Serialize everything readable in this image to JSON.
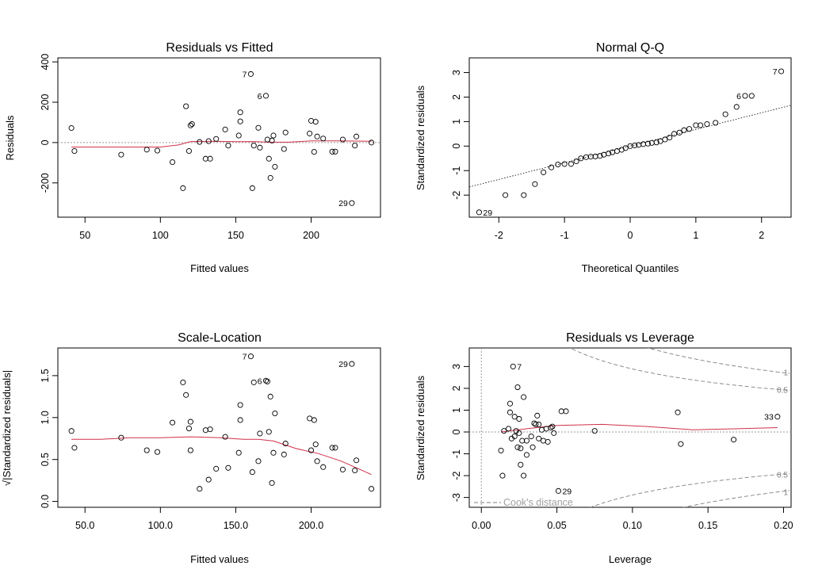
{
  "chart_data": [
    {
      "type": "scatter",
      "title": "Residuals vs Fitted",
      "xlabel": "Fitted values",
      "ylabel": "Residuals",
      "xlim": [
        32,
        246
      ],
      "ylim": [
        -370,
        420
      ],
      "xticks": [
        50,
        100,
        150,
        200
      ],
      "yticks": [
        -200,
        0,
        200,
        400
      ],
      "reference_line_y": 0,
      "points": [
        [
          41,
          72
        ],
        [
          43,
          -42
        ],
        [
          74,
          -60
        ],
        [
          91,
          -35
        ],
        [
          98,
          -40
        ],
        [
          108,
          -97
        ],
        [
          115,
          -226
        ],
        [
          117,
          180
        ],
        [
          119,
          -42
        ],
        [
          120,
          85
        ],
        [
          121,
          92
        ],
        [
          126,
          3
        ],
        [
          130,
          -80
        ],
        [
          132,
          7
        ],
        [
          133,
          -80
        ],
        [
          137,
          18
        ],
        [
          143,
          65
        ],
        [
          145,
          -15
        ],
        [
          152,
          35
        ],
        [
          153,
          105
        ],
        [
          153,
          150
        ],
        [
          160,
          340
        ],
        [
          161,
          -226
        ],
        [
          162,
          -15
        ],
        [
          165,
          73
        ],
        [
          166,
          -25
        ],
        [
          170,
          232
        ],
        [
          171,
          15
        ],
        [
          172,
          -80
        ],
        [
          173,
          -175
        ],
        [
          174,
          10
        ],
        [
          175,
          35
        ],
        [
          176,
          -120
        ],
        [
          182,
          -32
        ],
        [
          183,
          50
        ],
        [
          199,
          45
        ],
        [
          200,
          108
        ],
        [
          202,
          -46
        ],
        [
          203,
          103
        ],
        [
          204,
          30
        ],
        [
          208,
          20
        ],
        [
          214,
          -45
        ],
        [
          216,
          -45
        ],
        [
          221,
          15
        ],
        [
          227,
          -300
        ],
        [
          229,
          -15
        ],
        [
          230,
          30
        ],
        [
          240,
          0
        ]
      ],
      "smooth": [
        [
          41,
          -22
        ],
        [
          70,
          -22
        ],
        [
          100,
          -22
        ],
        [
          112,
          -12
        ],
        [
          120,
          5
        ],
        [
          135,
          6
        ],
        [
          150,
          4
        ],
        [
          162,
          5
        ],
        [
          172,
          2
        ],
        [
          185,
          2
        ],
        [
          200,
          8
        ],
        [
          220,
          8
        ],
        [
          240,
          6
        ]
      ],
      "labels": [
        {
          "text": "7",
          "x": 160,
          "y": 340
        },
        {
          "text": "6",
          "x": 170,
          "y": 232
        },
        {
          "text": "29",
          "x": 227,
          "y": -300
        }
      ]
    },
    {
      "type": "scatter",
      "title": "Normal Q-Q",
      "xlabel": "Theoretical Quantiles",
      "ylabel": "Standardized residuals",
      "xlim": [
        -2.45,
        2.45
      ],
      "ylim": [
        -2.9,
        3.6
      ],
      "xticks": [
        -2,
        -1,
        0,
        1,
        2
      ],
      "yticks": [
        -2,
        -1,
        0,
        1,
        2,
        3
      ],
      "qq_line": {
        "slope": 0.68,
        "intercept": 0.0
      },
      "points": [
        [
          -2.3,
          -2.7
        ],
        [
          -1.9,
          -2.0
        ],
        [
          -1.62,
          -2.0
        ],
        [
          -1.45,
          -1.55
        ],
        [
          -1.32,
          -1.07
        ],
        [
          -1.2,
          -0.87
        ],
        [
          -1.1,
          -0.75
        ],
        [
          -1.0,
          -0.73
        ],
        [
          -0.9,
          -0.73
        ],
        [
          -0.82,
          -0.62
        ],
        [
          -0.75,
          -0.5
        ],
        [
          -0.67,
          -0.45
        ],
        [
          -0.6,
          -0.43
        ],
        [
          -0.53,
          -0.42
        ],
        [
          -0.46,
          -0.4
        ],
        [
          -0.4,
          -0.35
        ],
        [
          -0.33,
          -0.3
        ],
        [
          -0.27,
          -0.25
        ],
        [
          -0.2,
          -0.2
        ],
        [
          -0.13,
          -0.15
        ],
        [
          -0.07,
          -0.08
        ],
        [
          0.0,
          0.0
        ],
        [
          0.07,
          0.03
        ],
        [
          0.13,
          0.05
        ],
        [
          0.2,
          0.08
        ],
        [
          0.27,
          0.1
        ],
        [
          0.33,
          0.13
        ],
        [
          0.4,
          0.15
        ],
        [
          0.46,
          0.2
        ],
        [
          0.53,
          0.27
        ],
        [
          0.6,
          0.35
        ],
        [
          0.67,
          0.5
        ],
        [
          0.75,
          0.55
        ],
        [
          0.82,
          0.65
        ],
        [
          0.9,
          0.7
        ],
        [
          1.0,
          0.85
        ],
        [
          1.07,
          0.85
        ],
        [
          1.17,
          0.9
        ],
        [
          1.3,
          0.95
        ],
        [
          1.45,
          1.3
        ],
        [
          1.62,
          1.6
        ],
        [
          1.75,
          2.05
        ],
        [
          1.85,
          2.05
        ],
        [
          2.3,
          3.05
        ]
      ],
      "labels": [
        {
          "text": "7",
          "x": 2.3,
          "y": 3.05
        },
        {
          "text": "6",
          "x": 1.75,
          "y": 2.05
        },
        {
          "text": "29",
          "x": -2.3,
          "y": -2.7
        }
      ]
    },
    {
      "type": "scatter",
      "title": "Scale-Location",
      "xlabel": "Fitted values",
      "ylabel": "√|Standardized residuals|",
      "xlim": [
        32,
        246
      ],
      "ylim": [
        -0.07,
        1.83
      ],
      "xticks": [
        50,
        100,
        150,
        200
      ],
      "yticks": [
        0.0,
        0.5,
        1.0,
        1.5
      ],
      "points": [
        [
          41,
          0.84
        ],
        [
          43,
          0.64
        ],
        [
          74,
          0.76
        ],
        [
          91,
          0.61
        ],
        [
          98,
          0.59
        ],
        [
          108,
          0.94
        ],
        [
          115,
          1.42
        ],
        [
          117,
          1.27
        ],
        [
          119,
          0.87
        ],
        [
          120,
          0.61
        ],
        [
          120,
          0.95
        ],
        [
          126,
          0.15
        ],
        [
          130,
          0.85
        ],
        [
          132,
          0.26
        ],
        [
          133,
          0.86
        ],
        [
          137,
          0.39
        ],
        [
          143,
          0.77
        ],
        [
          145,
          0.4
        ],
        [
          152,
          0.58
        ],
        [
          153,
          1.15
        ],
        [
          153,
          0.97
        ],
        [
          160,
          1.73
        ],
        [
          161,
          0.35
        ],
        [
          162,
          1.42
        ],
        [
          165,
          0.48
        ],
        [
          166,
          0.81
        ],
        [
          170,
          1.44
        ],
        [
          171,
          1.43
        ],
        [
          172,
          0.83
        ],
        [
          173,
          1.25
        ],
        [
          174,
          0.22
        ],
        [
          175,
          0.58
        ],
        [
          176,
          1.05
        ],
        [
          182,
          0.56
        ],
        [
          183,
          0.69
        ],
        [
          199,
          0.99
        ],
        [
          200,
          0.61
        ],
        [
          202,
          0.97
        ],
        [
          203,
          0.68
        ],
        [
          204,
          0.48
        ],
        [
          208,
          0.41
        ],
        [
          214,
          0.64
        ],
        [
          216,
          0.64
        ],
        [
          221,
          0.38
        ],
        [
          227,
          1.64
        ],
        [
          229,
          0.37
        ],
        [
          230,
          0.49
        ],
        [
          240,
          0.15
        ]
      ],
      "smooth": [
        [
          41,
          0.74
        ],
        [
          60,
          0.74
        ],
        [
          80,
          0.76
        ],
        [
          100,
          0.76
        ],
        [
          120,
          0.77
        ],
        [
          140,
          0.76
        ],
        [
          155,
          0.74
        ],
        [
          165,
          0.74
        ],
        [
          175,
          0.72
        ],
        [
          190,
          0.63
        ],
        [
          205,
          0.57
        ],
        [
          220,
          0.48
        ],
        [
          240,
          0.32
        ]
      ],
      "labels": [
        {
          "text": "7",
          "x": 160,
          "y": 1.73
        },
        {
          "text": "6",
          "x": 170,
          "y": 1.44
        },
        {
          "text": "29",
          "x": 227,
          "y": 1.64
        }
      ]
    },
    {
      "type": "scatter",
      "title": "Residuals vs Leverage",
      "xlabel": "Leverage",
      "ylabel": "Standardized residuals",
      "xlim": [
        -0.008,
        0.205
      ],
      "ylim": [
        -3.45,
        3.85
      ],
      "xticks": [
        0.0,
        0.05,
        0.1,
        0.15,
        0.2
      ],
      "yticks": [
        -3,
        -2,
        -1,
        0,
        1,
        2,
        3
      ],
      "points": [
        [
          0.013,
          -0.85
        ],
        [
          0.014,
          -2.0
        ],
        [
          0.015,
          0.05
        ],
        [
          0.018,
          0.15
        ],
        [
          0.019,
          0.9
        ],
        [
          0.019,
          1.3
        ],
        [
          0.02,
          -0.3
        ],
        [
          0.021,
          3.0
        ],
        [
          0.022,
          -0.2
        ],
        [
          0.022,
          0.7
        ],
        [
          0.023,
          0.05
        ],
        [
          0.024,
          -0.7
        ],
        [
          0.024,
          2.05
        ],
        [
          0.025,
          0.6
        ],
        [
          0.025,
          -0.05
        ],
        [
          0.026,
          -1.5
        ],
        [
          0.026,
          -0.75
        ],
        [
          0.027,
          -0.4
        ],
        [
          0.028,
          1.6
        ],
        [
          0.028,
          -2.0
        ],
        [
          0.03,
          -1.05
        ],
        [
          0.03,
          -0.4
        ],
        [
          0.033,
          -0.2
        ],
        [
          0.034,
          -0.7
        ],
        [
          0.035,
          0.4
        ],
        [
          0.036,
          0.35
        ],
        [
          0.037,
          0.75
        ],
        [
          0.038,
          0.35
        ],
        [
          0.038,
          -0.3
        ],
        [
          0.04,
          0.1
        ],
        [
          0.041,
          -0.4
        ],
        [
          0.043,
          0.15
        ],
        [
          0.044,
          -0.45
        ],
        [
          0.046,
          0.2
        ],
        [
          0.047,
          0.25
        ],
        [
          0.048,
          -0.05
        ],
        [
          0.051,
          -2.7
        ],
        [
          0.053,
          0.95
        ],
        [
          0.056,
          0.95
        ],
        [
          0.075,
          0.05
        ],
        [
          0.13,
          0.9
        ],
        [
          0.132,
          -0.55
        ],
        [
          0.167,
          -0.35
        ],
        [
          0.196,
          0.7
        ]
      ],
      "smooth": [
        [
          0.013,
          0.0
        ],
        [
          0.03,
          0.15
        ],
        [
          0.05,
          0.3
        ],
        [
          0.08,
          0.35
        ],
        [
          0.11,
          0.25
        ],
        [
          0.14,
          0.1
        ],
        [
          0.17,
          0.15
        ],
        [
          0.196,
          0.2
        ]
      ],
      "labels": [
        {
          "text": "7",
          "x": 0.021,
          "y": 3.0
        },
        {
          "text": "29",
          "x": 0.051,
          "y": -2.7
        },
        {
          "text": "33",
          "x": 0.196,
          "y": 0.7
        }
      ],
      "cook_contour_levels": [
        {
          "label": "1",
          "y_at_right": 2.75
        },
        {
          "label": "0.5",
          "y_at_right": 1.95
        },
        {
          "label": "0.5",
          "y_at_right": -1.95
        },
        {
          "label": "1",
          "y_at_right": -2.75
        }
      ],
      "legend": "Cook's distance"
    }
  ]
}
